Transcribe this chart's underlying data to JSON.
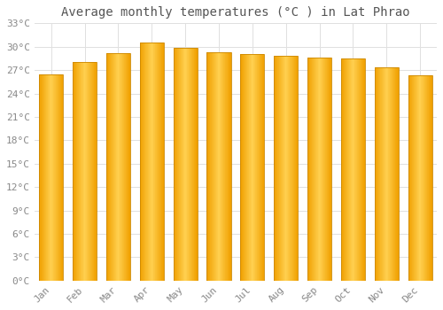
{
  "title": "Average monthly temperatures (°C ) in Lat Phrao",
  "months": [
    "Jan",
    "Feb",
    "Mar",
    "Apr",
    "May",
    "Jun",
    "Jul",
    "Aug",
    "Sep",
    "Oct",
    "Nov",
    "Dec"
  ],
  "values": [
    26.5,
    28.0,
    29.2,
    30.5,
    29.8,
    29.3,
    29.0,
    28.8,
    28.6,
    28.5,
    27.3,
    26.3
  ],
  "bar_color_left": "#F5A800",
  "bar_color_mid": "#FFD050",
  "bar_color_right": "#E89000",
  "bar_edge_color": "#CC8800",
  "background_color": "#FFFFFF",
  "grid_color": "#E0E0E0",
  "ylim": [
    0,
    33
  ],
  "yticks": [
    0,
    3,
    6,
    9,
    12,
    15,
    18,
    21,
    24,
    27,
    30,
    33
  ],
  "title_fontsize": 10,
  "tick_fontsize": 8,
  "font_family": "monospace",
  "title_color": "#555555",
  "tick_color": "#888888"
}
